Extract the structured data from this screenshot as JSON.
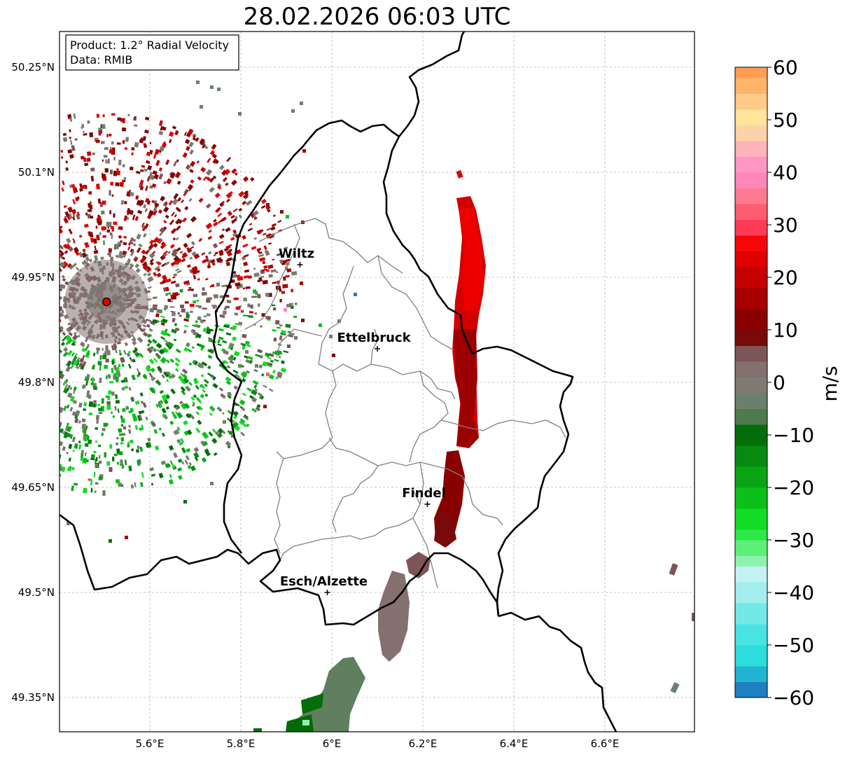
{
  "title": "28.02.2026 06:03 UTC",
  "info": {
    "product": "Product: 1.2° Radial Velocity",
    "source": "Data: RMIB"
  },
  "axes": {
    "x_ticks": [
      {
        "value": 5.6,
        "label": "5.6°E"
      },
      {
        "value": 5.8,
        "label": "5.8°E"
      },
      {
        "value": 6.0,
        "label": "6°E"
      },
      {
        "value": 6.2,
        "label": "6.2°E"
      },
      {
        "value": 6.4,
        "label": "6.4°E"
      },
      {
        "value": 6.6,
        "label": "6.6°E"
      }
    ],
    "y_ticks": [
      {
        "value": 50.25,
        "label": "50.25°N"
      },
      {
        "value": 50.1,
        "label": "50.1°N"
      },
      {
        "value": 49.95,
        "label": "49.95°N"
      },
      {
        "value": 49.8,
        "label": "49.8°N"
      },
      {
        "value": 49.65,
        "label": "49.65°N"
      },
      {
        "value": 49.5,
        "label": "49.5°N"
      },
      {
        "value": 49.35,
        "label": "49.35°N"
      }
    ],
    "lon_range": [
      5.4,
      6.8
    ],
    "lat_range": [
      49.3,
      50.3
    ],
    "grid": true
  },
  "cities": [
    {
      "name": "Wiltz",
      "lon": 5.93,
      "lat": 49.968
    },
    {
      "name": "Ettelbruck",
      "lon": 6.1,
      "lat": 49.848
    },
    {
      "name": "Findel",
      "lon": 6.21,
      "lat": 49.626
    },
    {
      "name": "Esch/Alzette",
      "lon": 5.99,
      "lat": 49.5
    }
  ],
  "radar_site": {
    "lon": 5.505,
    "lat": 49.915
  },
  "colorbar": {
    "label": "m/s",
    "min": -60,
    "max": 60,
    "ticks": [
      {
        "value": 60,
        "label": "60"
      },
      {
        "value": 50,
        "label": "50"
      },
      {
        "value": 40,
        "label": "40"
      },
      {
        "value": 30,
        "label": "30"
      },
      {
        "value": 20,
        "label": "20"
      },
      {
        "value": 10,
        "label": "10"
      },
      {
        "value": 0,
        "label": "0"
      },
      {
        "value": -10,
        "label": "−10"
      },
      {
        "value": -20,
        "label": "−20"
      },
      {
        "value": -30,
        "label": "−30"
      },
      {
        "value": -40,
        "label": "−40"
      },
      {
        "value": -50,
        "label": "−50"
      },
      {
        "value": -60,
        "label": "−60"
      }
    ],
    "bands": [
      {
        "from": -60,
        "to": -57,
        "color": "#1f7fc2"
      },
      {
        "from": -57,
        "to": -54,
        "color": "#22b4d0"
      },
      {
        "from": -54,
        "to": -50,
        "color": "#2ddcdc"
      },
      {
        "from": -50,
        "to": -46,
        "color": "#4ae3e3"
      },
      {
        "from": -46,
        "to": -42,
        "color": "#72e8e8"
      },
      {
        "from": -42,
        "to": -38,
        "color": "#a2eded"
      },
      {
        "from": -38,
        "to": -35,
        "color": "#c4f2f2"
      },
      {
        "from": -35,
        "to": -33,
        "color": "#8ff3b0"
      },
      {
        "from": -33,
        "to": -30,
        "color": "#5cf07a"
      },
      {
        "from": -30,
        "to": -28,
        "color": "#2ee84a"
      },
      {
        "from": -28,
        "to": -24,
        "color": "#12dc24"
      },
      {
        "from": -24,
        "to": -20,
        "color": "#0cc01a"
      },
      {
        "from": -20,
        "to": -16,
        "color": "#09a515"
      },
      {
        "from": -16,
        "to": -12,
        "color": "#068a10"
      },
      {
        "from": -12,
        "to": -8,
        "color": "#046e0a"
      },
      {
        "from": -8,
        "to": -5,
        "color": "#4f7a4f"
      },
      {
        "from": -5,
        "to": -2,
        "color": "#6b806b"
      },
      {
        "from": -2,
        "to": 1,
        "color": "#7e7a72"
      },
      {
        "from": 1,
        "to": 4,
        "color": "#84706f"
      },
      {
        "from": 4,
        "to": 7,
        "color": "#7d5458"
      },
      {
        "from": 7,
        "to": 10,
        "color": "#780a0a"
      },
      {
        "from": 10,
        "to": 14,
        "color": "#8a0000"
      },
      {
        "from": 14,
        "to": 18,
        "color": "#a80000"
      },
      {
        "from": 18,
        "to": 22,
        "color": "#c40000"
      },
      {
        "from": 22,
        "to": 25,
        "color": "#e00000"
      },
      {
        "from": 25,
        "to": 28,
        "color": "#f50808"
      },
      {
        "from": 28,
        "to": 31,
        "color": "#ff3a55"
      },
      {
        "from": 31,
        "to": 34,
        "color": "#ff5c72"
      },
      {
        "from": 34,
        "to": 37,
        "color": "#ff7a90"
      },
      {
        "from": 37,
        "to": 40,
        "color": "#ff86b8"
      },
      {
        "from": 40,
        "to": 43,
        "color": "#ff96c6"
      },
      {
        "from": 43,
        "to": 46,
        "color": "#ffb4bc"
      },
      {
        "from": 46,
        "to": 49,
        "color": "#fdd2a8"
      },
      {
        "from": 49,
        "to": 52,
        "color": "#ffe49a"
      },
      {
        "from": 52,
        "to": 55,
        "color": "#ffcb88"
      },
      {
        "from": 55,
        "to": 58,
        "color": "#ffb46a"
      },
      {
        "from": 58,
        "to": 60,
        "color": "#ff9e52"
      }
    ]
  }
}
